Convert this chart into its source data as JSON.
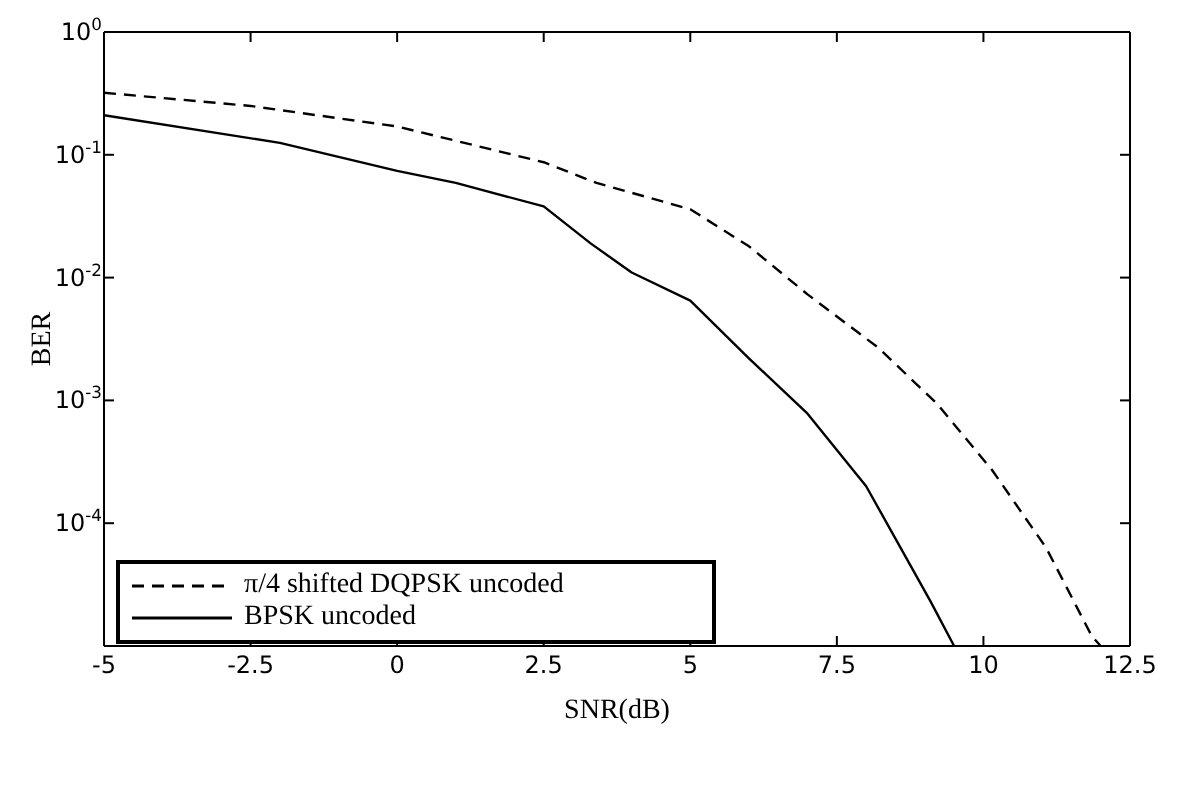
{
  "chart_data": {
    "type": "line",
    "xlabel": "SNR(dB)",
    "ylabel": "BER",
    "log": "y",
    "xlim": [
      -5,
      12.5
    ],
    "xticks": [
      -5,
      -2.5,
      0,
      2.5,
      5,
      7.5,
      10,
      12.5
    ],
    "ylim": [
      1e-05,
      1
    ],
    "yticks": [
      {
        "value": 1e-05,
        "label": null
      },
      {
        "value": 0.0001,
        "label": "10$^{-4}$"
      },
      {
        "value": 0.001,
        "label": "10$^{-3}$"
      },
      {
        "value": 0.01,
        "label": "10$^{-2}$"
      },
      {
        "value": 0.1,
        "label": "10$^{-1}$"
      },
      {
        "value": 1,
        "label": "10$^{0}$"
      }
    ],
    "legend": "bottom left",
    "marker": "none",
    "series": [
      {
        "name": "π/4 shifted DQPSK uncoded",
        "color": "#000000",
        "line_style": "dashed",
        "x": [
          -5,
          -2.5,
          0,
          2.5,
          3.4,
          5,
          6,
          7,
          8.2,
          9.2,
          10.15,
          11.07,
          11.85,
          12
        ],
        "values": [
          0.32,
          0.25,
          0.17,
          0.087,
          0.059,
          0.036,
          0.018,
          0.0073,
          0.0027,
          0.00095,
          0.00027,
          6.3e-05,
          1.2e-05,
          1e-05
        ]
      },
      {
        "name": "BPSK uncoded",
        "color": "#000000",
        "line_style": "solid",
        "x": [
          -5,
          -2,
          0,
          1,
          2.5,
          3.3,
          4,
          5,
          6,
          7,
          8,
          9.1,
          9.5
        ],
        "values": [
          0.21,
          0.125,
          0.074,
          0.059,
          0.038,
          0.019,
          0.011,
          0.0065,
          0.0022,
          0.00078,
          0.0002,
          2.3e-05,
          1e-05
        ]
      }
    ]
  }
}
